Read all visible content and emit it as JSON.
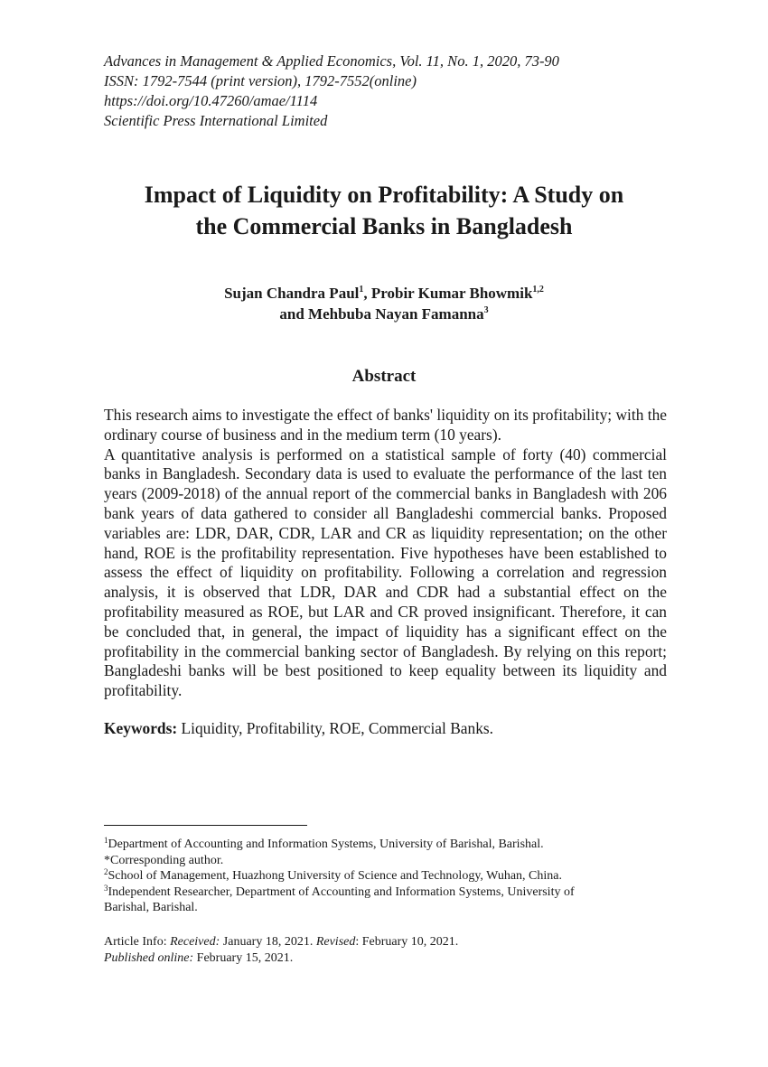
{
  "header": {
    "line1": "Advances in Management & Applied Economics, Vol. 11, No. 1, 2020, 73-90",
    "line2": "ISSN: 1792-7544 (print version), 1792-7552(online)",
    "line3": "https://doi.org/10.47260/amae/1114",
    "line4": "Scientific Press International Limited"
  },
  "title": {
    "line1": "Impact of Liquidity on Profitability: A Study on",
    "line2": "the Commercial Banks in Bangladesh"
  },
  "authors": {
    "author1": "Sujan Chandra Paul",
    "author1_sup": "1",
    "sep1": ", ",
    "author2": "Probir Kumar Bhowmik",
    "author2_sup": "1,2",
    "and": "and ",
    "author3": "Mehbuba Nayan Famanna",
    "author3_sup": "3"
  },
  "abstract": {
    "heading": "Abstract",
    "paragraph1": "This research aims to investigate the effect of banks' liquidity on its profitability; with the ordinary course of business and in the medium term (10 years).",
    "paragraph2": "A quantitative analysis is performed on a statistical sample of forty (40) commercial banks in Bangladesh. Secondary data is used to evaluate the performance of the last ten years (2009-2018) of the annual report of the commercial banks in Bangladesh with 206 bank years of data gathered to consider all Bangladeshi commercial banks. Proposed variables are: LDR, DAR, CDR, LAR and CR as liquidity representation; on the other hand, ROE is the profitability representation. Five hypotheses have been established to assess the effect of liquidity on profitability. Following a correlation and regression analysis, it is observed that LDR, DAR and CDR had a substantial effect on the profitability measured as ROE, but LAR and CR proved insignificant. Therefore, it can be concluded that, in general, the impact of liquidity has a significant effect on the profitability in the commercial banking sector of Bangladesh. By relying on this report; Bangladeshi banks will be best positioned to keep equality between its liquidity and profitability."
  },
  "keywords": {
    "label": "Keywords:",
    "text": " Liquidity, Profitability, ROE, Commercial Banks."
  },
  "footnotes": {
    "fn1_sup": "1",
    "fn1": "Department of Accounting and Information Systems, University of Barishal, Barishal.",
    "corresponding": "*Corresponding author.",
    "fn2_sup": "2",
    "fn2": "School of Management, Huazhong University of Science and Technology, Wuhan, China.",
    "fn3_sup": "3",
    "fn3_line1": "Independent Researcher, Department of Accounting and Information Systems, University of",
    "fn3_line2": "Barishal, Barishal."
  },
  "article_info": {
    "label": "Article Info: ",
    "received_label": "Received:",
    "received": " January 18, 2021. ",
    "revised_label": "Revised",
    "revised": ": February 10, 2021.",
    "published_label": "Published online:",
    "published": " February 15, 2021."
  }
}
